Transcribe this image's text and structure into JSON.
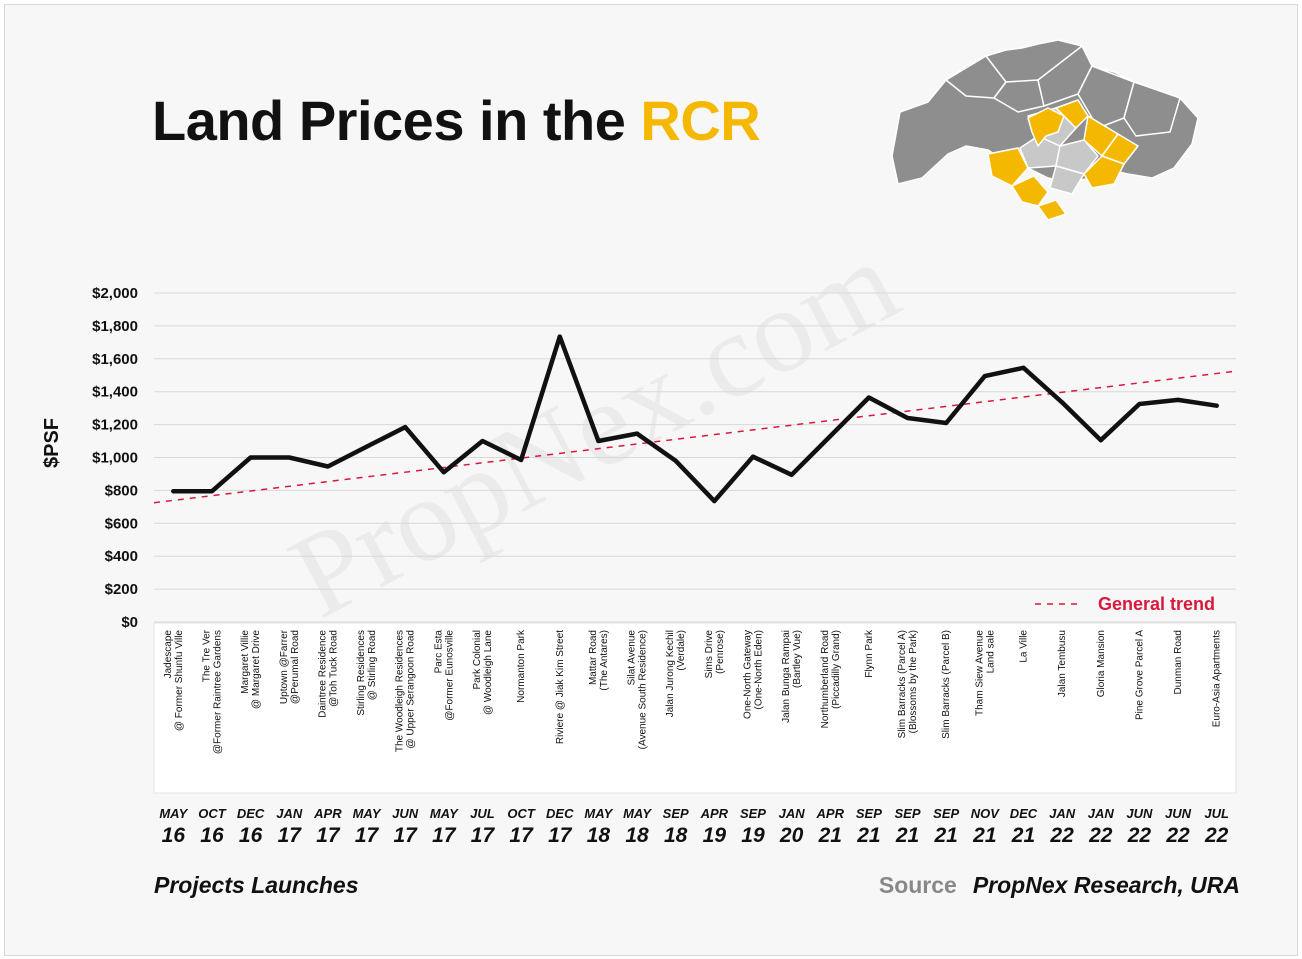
{
  "title": {
    "prefix": "Land Prices in the ",
    "highlight": "RCR"
  },
  "footer": {
    "left": "Projects Launches",
    "source_label": "Source",
    "source_text": "PropNex Research, URA"
  },
  "watermark": "PropNex.com",
  "colors": {
    "accent": "#f5b800",
    "line": "#111111",
    "trend": "#d9183b",
    "map_grey": "#8e8e8e",
    "map_light": "#c8c8c8"
  },
  "chart_data": {
    "type": "line",
    "title": "Land Prices in the RCR",
    "xlabel": "Projects Launches",
    "ylabel": "$PSF",
    "ylim": [
      0,
      2000
    ],
    "yticks": [
      "$0",
      "$200",
      "$400",
      "$600",
      "$800",
      "$1,000",
      "$1,200",
      "$1,400",
      "$1,600",
      "$1,800",
      "$2,000"
    ],
    "grid": true,
    "legend_position": "bottom-right",
    "categories": [
      {
        "name": [
          "Jadescape",
          "@ Former Shunfu Ville"
        ],
        "month": "MAY",
        "year": "16"
      },
      {
        "name": [
          "The Tre Ver",
          "@Former Raintree Gardens"
        ],
        "month": "OCT",
        "year": "16"
      },
      {
        "name": [
          "Margaret Villie",
          "@ Margaret Drive"
        ],
        "month": "DEC",
        "year": "16"
      },
      {
        "name": [
          "Uptown @Farrer",
          "@Perumal Road"
        ],
        "month": "JAN",
        "year": "17"
      },
      {
        "name": [
          "Daintree Residence",
          "@Toh Tuck Road"
        ],
        "month": "APR",
        "year": "17"
      },
      {
        "name": [
          "Stirling Residences",
          "@ Stirling Road"
        ],
        "month": "MAY",
        "year": "17"
      },
      {
        "name": [
          "The Woodleigh Residences",
          "@ Upper Serangoon Road"
        ],
        "month": "JUN",
        "year": "17"
      },
      {
        "name": [
          "Parc Esta",
          "@Former Eunosville"
        ],
        "month": "MAY",
        "year": "17"
      },
      {
        "name": [
          "Park Colonial",
          "@ Woodleigh Lane"
        ],
        "month": "JUL",
        "year": "17"
      },
      {
        "name": [
          "Normanton Park"
        ],
        "month": "OCT",
        "year": "17"
      },
      {
        "name": [
          "Riviere @ Jiak Kim Street"
        ],
        "month": "DEC",
        "year": "17"
      },
      {
        "name": [
          "Mattar Road",
          "(The Antares)"
        ],
        "month": "MAY",
        "year": "18"
      },
      {
        "name": [
          "Silat Avenue",
          "(Avenue South Residence)"
        ],
        "month": "MAY",
        "year": "18"
      },
      {
        "name": [
          "Jalan Jurong Kechil",
          "(Verdale)"
        ],
        "month": "SEP",
        "year": "18"
      },
      {
        "name": [
          "Sims Drive",
          "(Penrose)"
        ],
        "month": "APR",
        "year": "19"
      },
      {
        "name": [
          "One-North Gateway",
          "(One-North Eden)"
        ],
        "month": "SEP",
        "year": "19"
      },
      {
        "name": [
          "Jalan Bunga Rampai",
          "(Bartley Vue)"
        ],
        "month": "JAN",
        "year": "20"
      },
      {
        "name": [
          "Northumberland Road",
          "(Piccadilly Grand)"
        ],
        "month": "APR",
        "year": "21"
      },
      {
        "name": [
          "Flynn Park"
        ],
        "month": "SEP",
        "year": "21"
      },
      {
        "name": [
          "Slim Barracks (Parcel A)",
          "(Blossoms by the Park)"
        ],
        "month": "SEP",
        "year": "21"
      },
      {
        "name": [
          "Slim Barracks (Parcel B)"
        ],
        "month": "SEP",
        "year": "21"
      },
      {
        "name": [
          "Tham Siew Avenue",
          "Land sale"
        ],
        "month": "NOV",
        "year": "21"
      },
      {
        "name": [
          "La Ville"
        ],
        "month": "DEC",
        "year": "21"
      },
      {
        "name": [
          "Jalan Tembusu"
        ],
        "month": "JAN",
        "year": "22"
      },
      {
        "name": [
          "Gloria Mansion"
        ],
        "month": "JAN",
        "year": "22"
      },
      {
        "name": [
          "Pine Grove Parcel A"
        ],
        "month": "JUN",
        "year": "22"
      },
      {
        "name": [
          "Dunman Road"
        ],
        "month": "JUN",
        "year": "22"
      },
      {
        "name": [
          "Euro-Asia Apartments"
        ],
        "month": "JUL",
        "year": "22"
      }
    ],
    "series": [
      {
        "values": [
          795,
          795,
          1000,
          1000,
          945,
          1065,
          1185,
          910,
          1100,
          985,
          1735,
          1100,
          1145,
          980,
          735,
          1005,
          895,
          1130,
          1365,
          1240,
          1210,
          1495,
          1545,
          1335,
          1105,
          1325,
          1350,
          1315
        ]
      },
      {
        "name": "General trend",
        "style": "dashed",
        "from": 725,
        "to": 1525
      }
    ]
  }
}
